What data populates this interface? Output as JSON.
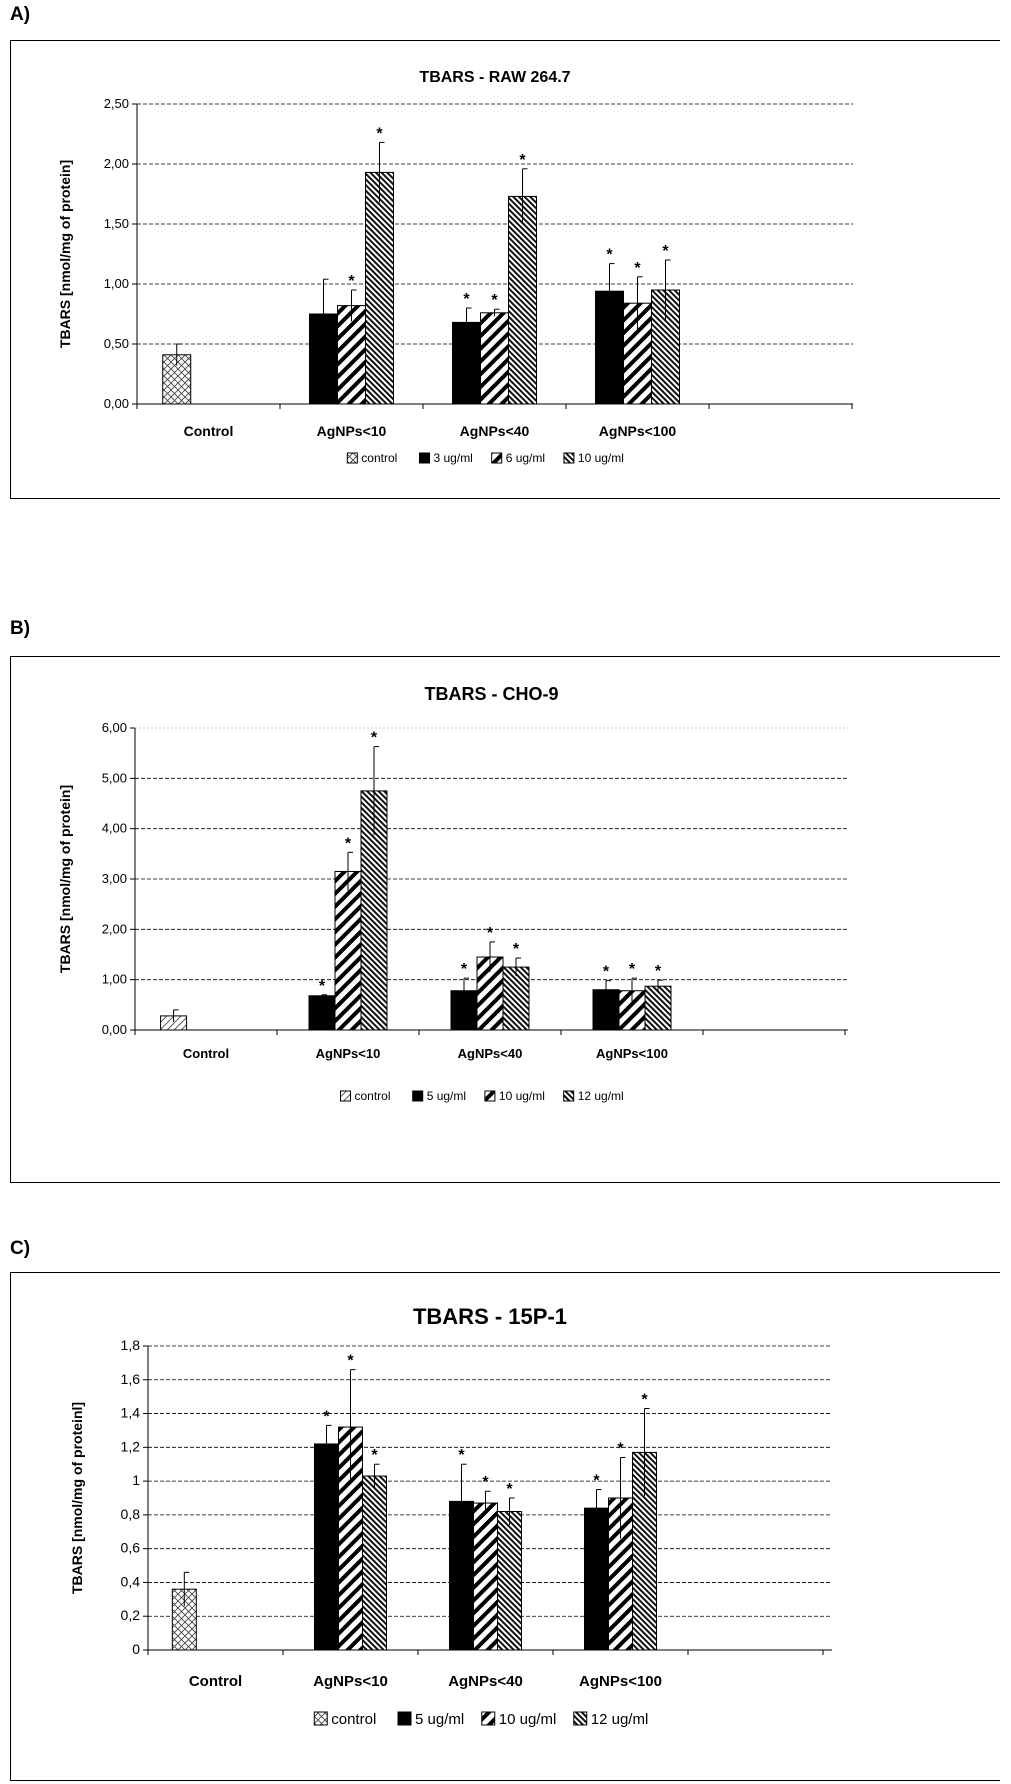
{
  "chart_data": [
    {
      "panel_label": "A)",
      "type": "bar",
      "title": "TBARS - RAW 264.7",
      "ylabel": "TBARS [nmol/mg of protein]",
      "xlabel": "",
      "categories": [
        "Control",
        "AgNPs<10",
        "AgNPs<40",
        "AgNPs<100"
      ],
      "ylim": [
        0,
        2.5
      ],
      "yticks": [
        0,
        0.5,
        1,
        1.5,
        2,
        2.5
      ],
      "ytick_labels": [
        "0,00",
        "0,50",
        "1,00",
        "1,50",
        "2,00",
        "2,50"
      ],
      "grid": true,
      "legend_position": "bottom",
      "series": [
        {
          "name": "control",
          "pattern": "crosshatch",
          "values": [
            0.41,
            null,
            null,
            null
          ],
          "errors": [
            0.09,
            null,
            null,
            null
          ],
          "stars": [
            false,
            false,
            false,
            false
          ]
        },
        {
          "name": "3 ug/ml",
          "pattern": "solid",
          "values": [
            null,
            0.75,
            0.68,
            0.94
          ],
          "errors": [
            null,
            0.29,
            0.12,
            0.23
          ],
          "stars": [
            false,
            false,
            true,
            true
          ]
        },
        {
          "name": "6 ug/ml",
          "pattern": "diagonal",
          "values": [
            null,
            0.82,
            0.76,
            0.84
          ],
          "errors": [
            null,
            0.13,
            0.03,
            0.22
          ],
          "stars": [
            false,
            true,
            true,
            true
          ]
        },
        {
          "name": "10 ug/ml",
          "pattern": "fine",
          "values": [
            null,
            1.93,
            1.73,
            0.95
          ],
          "errors": [
            null,
            0.25,
            0.23,
            0.25
          ],
          "stars": [
            false,
            true,
            true,
            true
          ]
        }
      ]
    },
    {
      "panel_label": "B)",
      "type": "bar",
      "title": "TBARS - CHO-9",
      "ylabel": "TBARS [nmol/mg of protein]",
      "xlabel": "",
      "categories": [
        "Control",
        "AgNPs<10",
        "AgNPs<40",
        "AgNPs<100"
      ],
      "ylim": [
        0,
        6
      ],
      "yticks": [
        0,
        1,
        2,
        3,
        4,
        5,
        6
      ],
      "ytick_labels": [
        "0,00",
        "1,00",
        "2,00",
        "3,00",
        "4,00",
        "5,00",
        "6,00"
      ],
      "grid": true,
      "legend_position": "bottom",
      "series": [
        {
          "name": "control",
          "pattern": "diagonal-light",
          "values": [
            0.28,
            null,
            null,
            null
          ],
          "errors": [
            0.12,
            null,
            null,
            null
          ],
          "stars": [
            false,
            false,
            false,
            false
          ]
        },
        {
          "name": "5 ug/ml",
          "pattern": "solid",
          "values": [
            null,
            0.68,
            0.78,
            0.8
          ],
          "errors": [
            null,
            0.02,
            0.25,
            0.18
          ],
          "stars": [
            false,
            true,
            true,
            true
          ]
        },
        {
          "name": "10 ug/ml",
          "pattern": "diagonal",
          "values": [
            null,
            3.15,
            1.45,
            0.78
          ],
          "errors": [
            null,
            0.38,
            0.3,
            0.25
          ],
          "stars": [
            false,
            true,
            true,
            true
          ]
        },
        {
          "name": "12 ug/ml",
          "pattern": "fine",
          "values": [
            null,
            4.75,
            1.25,
            0.87
          ],
          "errors": [
            null,
            0.88,
            0.18,
            0.12
          ],
          "stars": [
            false,
            true,
            true,
            true
          ]
        }
      ]
    },
    {
      "panel_label": "C)",
      "type": "bar",
      "title": "TBARS - 15P-1",
      "ylabel": "TBARS [nmol/mg of proteinl]",
      "xlabel": "",
      "categories": [
        "Control",
        "AgNPs<10",
        "AgNPs<40",
        "AgNPs<100"
      ],
      "ylim": [
        0,
        1.8
      ],
      "yticks": [
        0,
        0.2,
        0.4,
        0.6,
        0.8,
        1,
        1.2,
        1.4,
        1.6,
        1.8
      ],
      "ytick_labels": [
        "0",
        "0,2",
        "0,4",
        "0,6",
        "0,8",
        "1",
        "1,2",
        "1,4",
        "1,6",
        "1,8"
      ],
      "grid": true,
      "legend_position": "bottom",
      "series": [
        {
          "name": "control",
          "pattern": "crosshatch",
          "values": [
            0.36,
            null,
            null,
            null
          ],
          "errors": [
            0.1,
            null,
            null,
            null
          ],
          "stars": [
            false,
            false,
            false,
            false
          ]
        },
        {
          "name": "5 ug/ml",
          "pattern": "solid",
          "values": [
            null,
            1.22,
            0.88,
            0.84
          ],
          "errors": [
            null,
            0.11,
            0.22,
            0.11
          ],
          "stars": [
            false,
            true,
            true,
            true
          ]
        },
        {
          "name": "10 ug/ml",
          "pattern": "diagonal",
          "values": [
            null,
            1.32,
            0.87,
            0.9
          ],
          "errors": [
            null,
            0.34,
            0.07,
            0.24
          ],
          "stars": [
            false,
            true,
            true,
            true
          ]
        },
        {
          "name": "12 ug/ml",
          "pattern": "fine",
          "values": [
            null,
            1.03,
            0.82,
            1.17
          ],
          "errors": [
            null,
            0.07,
            0.08,
            0.26
          ],
          "stars": [
            false,
            true,
            true,
            true
          ]
        }
      ]
    }
  ]
}
